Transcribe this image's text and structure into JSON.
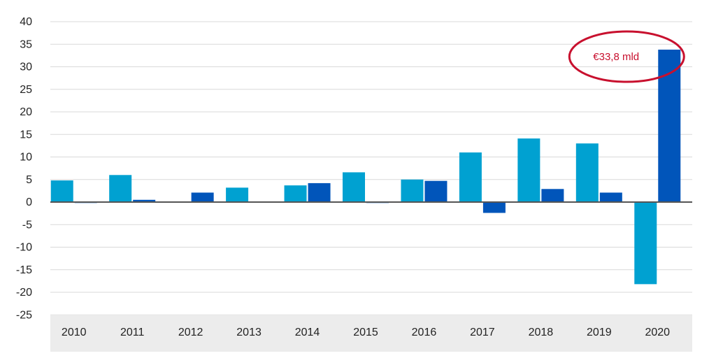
{
  "chart_data": {
    "type": "bar",
    "title": "",
    "xlabel": "",
    "ylabel": "",
    "ylim": [
      -25,
      40
    ],
    "yticks": [
      40,
      35,
      30,
      25,
      20,
      15,
      10,
      5,
      0,
      -5,
      -10,
      -15,
      -20,
      -25
    ],
    "grid": true,
    "categories": [
      "2010",
      "2011",
      "2012",
      "2013",
      "2014",
      "2015",
      "2016",
      "2017",
      "2018",
      "2019",
      "2020"
    ],
    "series": [
      {
        "color": "#00A1D1",
        "values": [
          4.8,
          6.0,
          0.0,
          3.2,
          3.7,
          6.6,
          5.0,
          11.0,
          14.1,
          13.0,
          -18.2
        ]
      },
      {
        "color": "#0155BA",
        "values": [
          -0.2,
          0.5,
          2.1,
          0.0,
          4.2,
          -0.2,
          4.7,
          -2.4,
          2.9,
          2.1,
          33.8
        ]
      }
    ],
    "annotation": {
      "text": "€33,8 mld",
      "color": "#C8102E",
      "target_category": "2020"
    }
  }
}
